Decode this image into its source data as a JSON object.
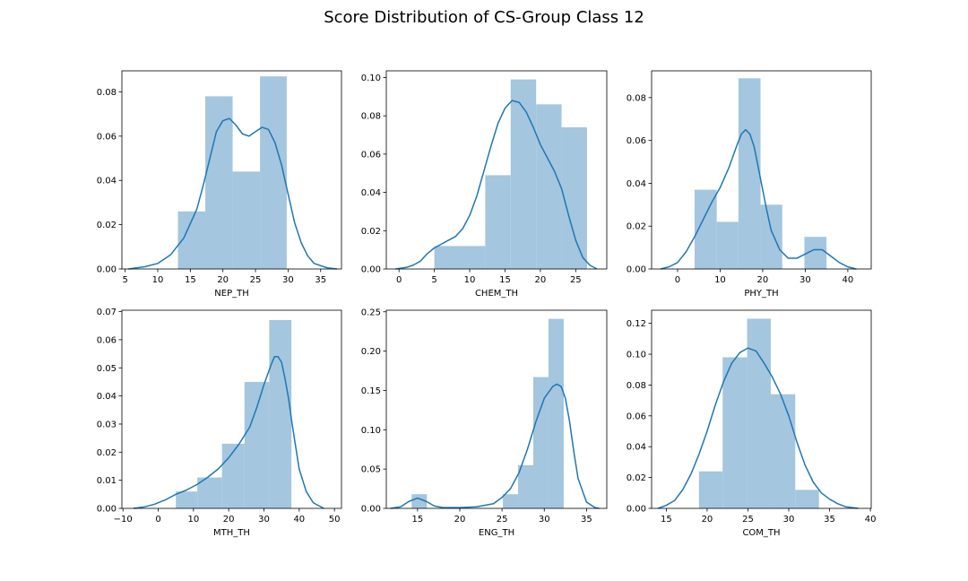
{
  "figure": {
    "title": "Score Distribution of CS-Group Class 12",
    "bar_color": "#a4c6df",
    "line_color": "#1f77b4"
  },
  "chart_data": [
    {
      "type": "histogram",
      "xlabel": "NEP_TH",
      "xlim": [
        4.5,
        38.2
      ],
      "ylim": [
        0,
        0.0895
      ],
      "xticks": [
        5,
        10,
        15,
        20,
        25,
        30,
        35
      ],
      "yticks": [
        0.0,
        0.02,
        0.04,
        0.06,
        0.08
      ],
      "ytick_format": 2,
      "bins": [
        {
          "x0": 13.1,
          "x1": 17.3,
          "density": 0.026
        },
        {
          "x0": 17.3,
          "x1": 21.5,
          "density": 0.078
        },
        {
          "x0": 21.5,
          "x1": 25.7,
          "density": 0.044
        },
        {
          "x0": 25.7,
          "x1": 29.8,
          "density": 0.087
        }
      ],
      "kde": [
        [
          5.5,
          0.0
        ],
        [
          8,
          0.001
        ],
        [
          10,
          0.0025
        ],
        [
          12,
          0.0065
        ],
        [
          14,
          0.014
        ],
        [
          16,
          0.027
        ],
        [
          17,
          0.038
        ],
        [
          18,
          0.05
        ],
        [
          19,
          0.062
        ],
        [
          20,
          0.067
        ],
        [
          21,
          0.068
        ],
        [
          22,
          0.065
        ],
        [
          23,
          0.061
        ],
        [
          24,
          0.06
        ],
        [
          25,
          0.062
        ],
        [
          26,
          0.064
        ],
        [
          27,
          0.063
        ],
        [
          28,
          0.057
        ],
        [
          29,
          0.047
        ],
        [
          30,
          0.034
        ],
        [
          31,
          0.021
        ],
        [
          32,
          0.012
        ],
        [
          33,
          0.006
        ],
        [
          34,
          0.0025
        ],
        [
          36,
          0.0005
        ],
        [
          37.5,
          0.0
        ]
      ]
    },
    {
      "type": "histogram",
      "xlabel": "CHEM_TH",
      "xlim": [
        -1.8,
        29.4
      ],
      "ylim": [
        0,
        0.1035
      ],
      "xticks": [
        0,
        5,
        10,
        15,
        20,
        25
      ],
      "yticks": [
        0.0,
        0.02,
        0.04,
        0.06,
        0.08,
        0.1
      ],
      "ytick_format": 2,
      "bins": [
        {
          "x0": 5.0,
          "x1": 8.6,
          "density": 0.012
        },
        {
          "x0": 8.6,
          "x1": 12.2,
          "density": 0.012
        },
        {
          "x0": 12.2,
          "x1": 15.8,
          "density": 0.049
        },
        {
          "x0": 15.8,
          "x1": 19.4,
          "density": 0.099
        },
        {
          "x0": 19.4,
          "x1": 23.0,
          "density": 0.086
        },
        {
          "x0": 23.0,
          "x1": 26.6,
          "density": 0.074
        }
      ],
      "kde": [
        [
          -0.5,
          0.0
        ],
        [
          1,
          0.0008
        ],
        [
          2,
          0.002
        ],
        [
          3,
          0.004
        ],
        [
          4,
          0.008
        ],
        [
          5,
          0.011
        ],
        [
          6,
          0.013
        ],
        [
          7,
          0.015
        ],
        [
          8,
          0.017
        ],
        [
          9,
          0.021
        ],
        [
          10,
          0.028
        ],
        [
          11,
          0.038
        ],
        [
          12,
          0.051
        ],
        [
          13,
          0.064
        ],
        [
          14,
          0.076
        ],
        [
          15,
          0.084
        ],
        [
          16,
          0.088
        ],
        [
          17,
          0.087
        ],
        [
          18,
          0.082
        ],
        [
          19,
          0.074
        ],
        [
          20,
          0.065
        ],
        [
          21,
          0.058
        ],
        [
          22,
          0.051
        ],
        [
          23,
          0.042
        ],
        [
          24,
          0.028
        ],
        [
          25,
          0.015
        ],
        [
          26,
          0.006
        ],
        [
          27,
          0.002
        ],
        [
          28,
          0.0
        ]
      ]
    },
    {
      "type": "histogram",
      "xlabel": "PHY_TH",
      "xlim": [
        -6.1,
        45.5
      ],
      "ylim": [
        0,
        0.0925
      ],
      "xticks": [
        0,
        10,
        20,
        30,
        40
      ],
      "yticks": [
        0.0,
        0.02,
        0.04,
        0.06,
        0.08
      ],
      "ytick_format": 2,
      "bins": [
        {
          "x0": 4.0,
          "x1": 9.2,
          "density": 0.037
        },
        {
          "x0": 9.2,
          "x1": 14.3,
          "density": 0.022
        },
        {
          "x0": 14.3,
          "x1": 19.5,
          "density": 0.089
        },
        {
          "x0": 19.5,
          "x1": 24.6,
          "density": 0.03
        },
        {
          "x0": 24.6,
          "x1": 29.8,
          "density": 0.0
        },
        {
          "x0": 29.8,
          "x1": 35.0,
          "density": 0.015
        }
      ],
      "kde": [
        [
          -4,
          0.0
        ],
        [
          -2,
          0.001
        ],
        [
          0,
          0.003
        ],
        [
          2,
          0.008
        ],
        [
          4,
          0.015
        ],
        [
          6,
          0.023
        ],
        [
          8,
          0.031
        ],
        [
          10,
          0.038
        ],
        [
          12,
          0.047
        ],
        [
          14,
          0.058
        ],
        [
          15,
          0.063
        ],
        [
          16,
          0.065
        ],
        [
          17,
          0.063
        ],
        [
          18,
          0.057
        ],
        [
          19,
          0.047
        ],
        [
          20,
          0.037
        ],
        [
          21,
          0.027
        ],
        [
          22,
          0.018
        ],
        [
          24,
          0.009
        ],
        [
          26,
          0.005
        ],
        [
          28,
          0.005
        ],
        [
          30,
          0.007
        ],
        [
          32,
          0.009
        ],
        [
          34,
          0.009
        ],
        [
          36,
          0.006
        ],
        [
          38,
          0.003
        ],
        [
          40,
          0.001
        ],
        [
          42,
          0.0
        ]
      ]
    },
    {
      "type": "histogram",
      "xlabel": "MTH_TH",
      "xlim": [
        -10.3,
        52
      ],
      "ylim": [
        0,
        0.0705
      ],
      "xticks": [
        -10,
        0,
        10,
        20,
        30,
        40,
        50
      ],
      "yticks": [
        0.0,
        0.01,
        0.02,
        0.03,
        0.04,
        0.05,
        0.06,
        0.07
      ],
      "ytick_format": 2,
      "bins": [
        {
          "x0": 5.0,
          "x1": 11.1,
          "density": 0.006
        },
        {
          "x0": 11.1,
          "x1": 18.1,
          "density": 0.011
        },
        {
          "x0": 18.1,
          "x1": 24.5,
          "density": 0.023
        },
        {
          "x0": 24.5,
          "x1": 31.5,
          "density": 0.045
        },
        {
          "x0": 31.5,
          "x1": 37.8,
          "density": 0.067
        }
      ],
      "kde": [
        [
          -7,
          0.0
        ],
        [
          -4,
          0.0005
        ],
        [
          -1,
          0.0015
        ],
        [
          2,
          0.003
        ],
        [
          5,
          0.005
        ],
        [
          8,
          0.0065
        ],
        [
          11,
          0.0085
        ],
        [
          14,
          0.011
        ],
        [
          17,
          0.014
        ],
        [
          20,
          0.018
        ],
        [
          23,
          0.023
        ],
        [
          26,
          0.029
        ],
        [
          28,
          0.036
        ],
        [
          30,
          0.044
        ],
        [
          32,
          0.051
        ],
        [
          33,
          0.054
        ],
        [
          34,
          0.054
        ],
        [
          35,
          0.052
        ],
        [
          36,
          0.046
        ],
        [
          37,
          0.039
        ],
        [
          38,
          0.03
        ],
        [
          39,
          0.022
        ],
        [
          40,
          0.014
        ],
        [
          42,
          0.006
        ],
        [
          44,
          0.002
        ],
        [
          47,
          0.0
        ]
      ]
    },
    {
      "type": "histogram",
      "xlabel": "ENG_TH",
      "xlim": [
        11.3,
        37.4
      ],
      "ylim": [
        0,
        0.252
      ],
      "xticks": [
        15,
        20,
        25,
        30,
        35
      ],
      "yticks": [
        0.0,
        0.05,
        0.1,
        0.15,
        0.2,
        0.25
      ],
      "ytick_format": 2,
      "bins": [
        {
          "x0": 14.3,
          "x1": 16.1,
          "density": 0.018
        },
        {
          "x0": 25.1,
          "x1": 26.9,
          "density": 0.018
        },
        {
          "x0": 26.9,
          "x1": 28.7,
          "density": 0.055
        },
        {
          "x0": 28.7,
          "x1": 30.5,
          "density": 0.167
        },
        {
          "x0": 30.5,
          "x1": 32.3,
          "density": 0.241
        }
      ],
      "kde": [
        [
          11.8,
          0.0
        ],
        [
          13,
          0.002
        ],
        [
          14,
          0.009
        ],
        [
          15,
          0.013
        ],
        [
          16,
          0.009
        ],
        [
          17,
          0.003
        ],
        [
          18,
          0.001
        ],
        [
          20,
          0.001
        ],
        [
          22,
          0.002
        ],
        [
          24,
          0.006
        ],
        [
          25,
          0.014
        ],
        [
          26,
          0.025
        ],
        [
          27,
          0.045
        ],
        [
          28,
          0.075
        ],
        [
          29,
          0.11
        ],
        [
          30,
          0.14
        ],
        [
          31,
          0.155
        ],
        [
          31.5,
          0.158
        ],
        [
          32,
          0.155
        ],
        [
          32.5,
          0.14
        ],
        [
          33,
          0.11
        ],
        [
          33.5,
          0.072
        ],
        [
          34,
          0.038
        ],
        [
          35,
          0.008
        ],
        [
          36,
          0.001
        ],
        [
          36.5,
          0.0
        ]
      ]
    },
    {
      "type": "histogram",
      "xlabel": "COM_TH",
      "xlim": [
        13.2,
        40.1
      ],
      "ylim": [
        0,
        0.1285
      ],
      "xticks": [
        15,
        20,
        25,
        30,
        35,
        40
      ],
      "yticks": [
        0.0,
        0.02,
        0.04,
        0.06,
        0.08,
        0.1,
        0.12
      ],
      "ytick_format": 2,
      "bins": [
        {
          "x0": 19.0,
          "x1": 21.9,
          "density": 0.024
        },
        {
          "x0": 21.9,
          "x1": 24.9,
          "density": 0.098
        },
        {
          "x0": 24.9,
          "x1": 27.8,
          "density": 0.123
        },
        {
          "x0": 27.8,
          "x1": 30.8,
          "density": 0.074
        },
        {
          "x0": 30.8,
          "x1": 33.7,
          "density": 0.012
        }
      ],
      "kde": [
        [
          14,
          0.0
        ],
        [
          15,
          0.002
        ],
        [
          16,
          0.005
        ],
        [
          17,
          0.012
        ],
        [
          18,
          0.022
        ],
        [
          19,
          0.035
        ],
        [
          20,
          0.05
        ],
        [
          21,
          0.067
        ],
        [
          22,
          0.082
        ],
        [
          23,
          0.094
        ],
        [
          24,
          0.101
        ],
        [
          25,
          0.104
        ],
        [
          26,
          0.102
        ],
        [
          27,
          0.094
        ],
        [
          28,
          0.085
        ],
        [
          29,
          0.074
        ],
        [
          30,
          0.06
        ],
        [
          31,
          0.043
        ],
        [
          32,
          0.028
        ],
        [
          33,
          0.017
        ],
        [
          34,
          0.01
        ],
        [
          35,
          0.006
        ],
        [
          36,
          0.003
        ],
        [
          37,
          0.001
        ],
        [
          38.5,
          0.0
        ]
      ]
    }
  ]
}
